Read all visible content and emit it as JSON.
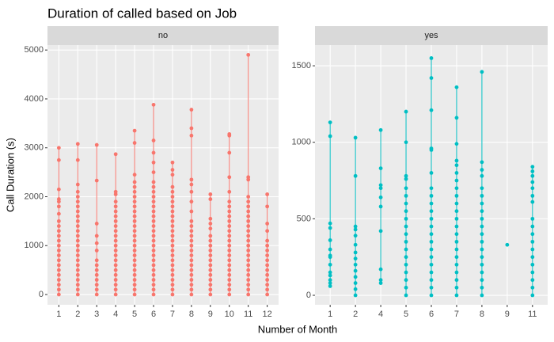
{
  "chart_data": {
    "type": "strip",
    "title": "Duration of called based on Job",
    "x_label": "Number of Month",
    "y_label": "Call Duration (s)",
    "grid": true,
    "facets": [
      {
        "strip": "no",
        "color": "#F8766D",
        "ylim": [
          -210,
          5100
        ],
        "yticks": [
          0,
          1000,
          2000,
          3000,
          4000,
          5000
        ],
        "categories": [
          "1",
          "2",
          "3",
          "4",
          "5",
          "6",
          "7",
          "8",
          "9",
          "10",
          "11",
          "12"
        ],
        "values": [
          [
            0,
            100,
            200,
            300,
            400,
            500,
            600,
            700,
            800,
            900,
            1000,
            1100,
            1200,
            1300,
            1400,
            1500,
            1650,
            1800,
            1900,
            1950,
            2150,
            2750,
            3000
          ],
          [
            0,
            100,
            200,
            300,
            400,
            500,
            600,
            700,
            800,
            900,
            1000,
            1100,
            1200,
            1300,
            1400,
            1500,
            1600,
            1700,
            1800,
            1900,
            2000,
            2100,
            2250,
            2750,
            3080
          ],
          [
            0,
            100,
            200,
            300,
            400,
            500,
            600,
            700,
            900,
            1050,
            1200,
            1450,
            2330,
            3060
          ],
          [
            0,
            100,
            200,
            300,
            400,
            500,
            600,
            700,
            800,
            900,
            1000,
            1100,
            1200,
            1300,
            1400,
            1500,
            1600,
            1700,
            1800,
            1900,
            2050,
            2100,
            2870
          ],
          [
            0,
            100,
            200,
            300,
            400,
            500,
            600,
            700,
            800,
            900,
            1000,
            1100,
            1200,
            1300,
            1400,
            1500,
            1600,
            1700,
            1800,
            1900,
            2000,
            2100,
            2200,
            2300,
            2450,
            3100,
            3350
          ],
          [
            0,
            100,
            200,
            300,
            400,
            500,
            600,
            700,
            800,
            900,
            1000,
            1100,
            1200,
            1300,
            1400,
            1500,
            1600,
            1700,
            1800,
            1900,
            2000,
            2100,
            2200,
            2300,
            2500,
            2700,
            2900,
            3150,
            3880
          ],
          [
            0,
            100,
            200,
            300,
            400,
            500,
            600,
            700,
            800,
            900,
            1000,
            1100,
            1200,
            1300,
            1400,
            1500,
            1600,
            1700,
            1800,
            1900,
            2000,
            2100,
            2200,
            2450,
            2550,
            2700
          ],
          [
            0,
            100,
            200,
            300,
            400,
            500,
            600,
            700,
            800,
            900,
            1000,
            1100,
            1200,
            1300,
            1400,
            1500,
            1700,
            1900,
            2100,
            2250,
            2350,
            3250,
            3400,
            3780
          ],
          [
            0,
            100,
            200,
            300,
            400,
            500,
            600,
            700,
            800,
            900,
            1000,
            1100,
            1200,
            1350,
            1450,
            1550,
            1950,
            2050
          ],
          [
            0,
            100,
            200,
            300,
            400,
            500,
            600,
            700,
            800,
            900,
            1000,
            1100,
            1200,
            1300,
            1400,
            1500,
            1600,
            1700,
            1800,
            1900,
            2100,
            2400,
            2900,
            3250,
            3280
          ],
          [
            0,
            100,
            200,
            300,
            400,
            500,
            600,
            700,
            800,
            900,
            1000,
            1100,
            1200,
            1300,
            1400,
            1500,
            1600,
            1700,
            1800,
            1900,
            2000,
            2350,
            2400,
            4900
          ],
          [
            0,
            100,
            200,
            300,
            400,
            500,
            600,
            700,
            800,
            900,
            1000,
            1100,
            1300,
            1450,
            1800,
            2050
          ]
        ]
      },
      {
        "strip": "yes",
        "color": "#00BFC4",
        "ylim": [
          -62,
          1635
        ],
        "yticks": [
          0,
          500,
          1000,
          1500
        ],
        "categories": [
          "1",
          "2",
          "4",
          "5",
          "6",
          "7",
          "8",
          "9",
          "11"
        ],
        "values": [
          [
            60,
            80,
            100,
            130,
            150,
            200,
            250,
            260,
            300,
            360,
            440,
            470,
            1040,
            1130
          ],
          [
            0,
            40,
            80,
            120,
            160,
            200,
            240,
            280,
            330,
            390,
            430,
            450,
            780,
            1030
          ],
          [
            80,
            100,
            170,
            420,
            580,
            640,
            700,
            720,
            830,
            1080
          ],
          [
            0,
            50,
            100,
            150,
            200,
            250,
            300,
            350,
            400,
            450,
            500,
            550,
            600,
            650,
            700,
            760,
            780,
            1000,
            1200
          ],
          [
            0,
            50,
            100,
            150,
            200,
            250,
            300,
            350,
            400,
            450,
            500,
            550,
            600,
            650,
            700,
            800,
            950,
            960,
            1210,
            1420,
            1550
          ],
          [
            0,
            50,
            100,
            150,
            200,
            250,
            300,
            350,
            400,
            450,
            500,
            550,
            600,
            650,
            700,
            750,
            800,
            850,
            880,
            990,
            1160,
            1360
          ],
          [
            0,
            50,
            100,
            150,
            200,
            250,
            300,
            350,
            400,
            450,
            500,
            550,
            600,
            650,
            700,
            780,
            820,
            870,
            1460
          ],
          [
            330
          ],
          [
            0,
            50,
            100,
            150,
            200,
            250,
            300,
            350,
            400,
            450,
            500,
            610,
            650,
            700,
            740,
            780,
            810,
            840
          ]
        ]
      }
    ]
  }
}
